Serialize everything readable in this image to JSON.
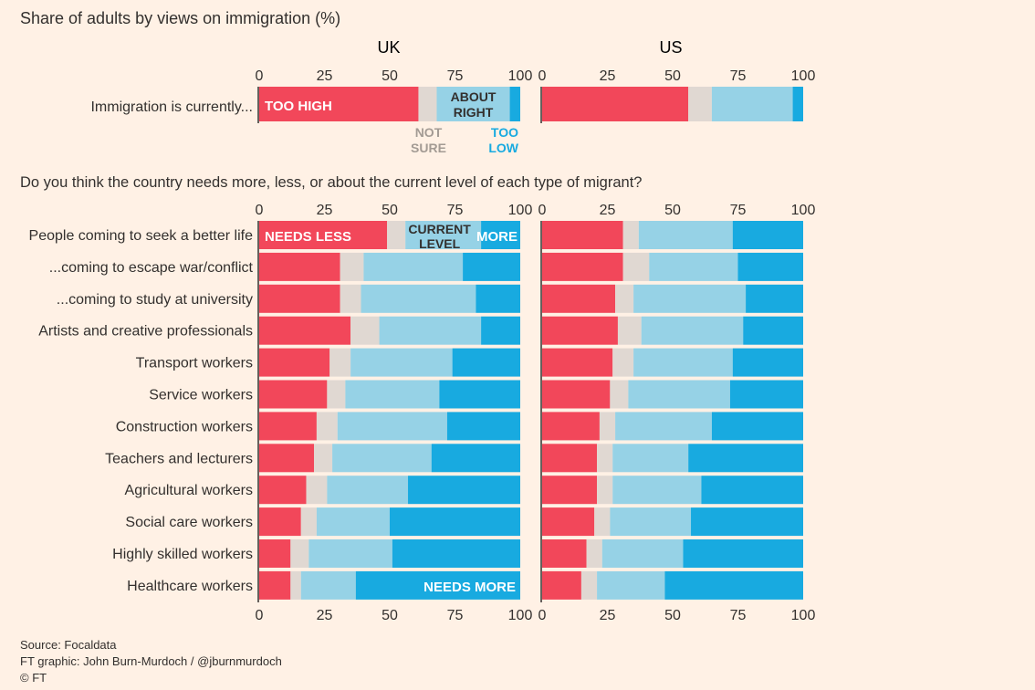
{
  "title": "Share of adults by views on immigration (%)",
  "panels": [
    "UK",
    "US"
  ],
  "ticks": [
    0,
    25,
    50,
    75,
    100
  ],
  "colors": {
    "less": "#f2475a",
    "not_sure": "#e0d8d2",
    "current": "#96d2e6",
    "more": "#18aae0",
    "text": "#33302e",
    "muted": "#a39b94",
    "axis": "#33302e",
    "background": "#fff1e5"
  },
  "chart_data": [
    {
      "type": "bar",
      "stacked": true,
      "orientation": "horizontal",
      "xlim": [
        0,
        100
      ],
      "categories": [
        "Immigration is currently..."
      ],
      "segment_labels": {
        "too_high": "TOO HIGH",
        "not_sure": [
          "NOT",
          "SURE"
        ],
        "about_right": [
          "ABOUT",
          "RIGHT"
        ],
        "too_low": [
          "TOO",
          "LOW"
        ]
      },
      "series": [
        {
          "name": "TOO HIGH",
          "key": "less",
          "uk": [
            61
          ],
          "us": [
            56
          ]
        },
        {
          "name": "NOT SURE",
          "key": "not_sure",
          "uk": [
            7
          ],
          "us": [
            9
          ]
        },
        {
          "name": "ABOUT RIGHT",
          "key": "current",
          "uk": [
            28
          ],
          "us": [
            31
          ]
        },
        {
          "name": "TOO LOW",
          "key": "more",
          "uk": [
            4
          ],
          "us": [
            4
          ]
        }
      ]
    },
    {
      "type": "bar",
      "stacked": true,
      "orientation": "horizontal",
      "xlim": [
        0,
        100
      ],
      "title": "Do you think the country needs more, less, or about the current level of each type of migrant?",
      "segment_labels": {
        "less": "NEEDS LESS",
        "current": [
          "CURRENT",
          "LEVEL"
        ],
        "more": "MORE",
        "more_bottom": "NEEDS MORE"
      },
      "categories": [
        "People coming to seek a better life",
        "...coming to escape war/conflict",
        "...coming to study at university",
        "Artists and creative professionals",
        "Transport workers",
        "Service workers",
        "Construction workers",
        "Teachers and lecturers",
        "Agricultural workers",
        "Social care workers",
        "Highly skilled workers",
        "Healthcare workers"
      ],
      "uk": {
        "less": [
          49,
          31,
          31,
          35,
          27,
          26,
          22,
          21,
          18,
          16,
          12,
          12
        ],
        "not_sure": [
          7,
          9,
          8,
          11,
          8,
          7,
          8,
          7,
          8,
          6,
          7,
          4
        ],
        "current": [
          29,
          38,
          44,
          39,
          39,
          36,
          42,
          38,
          31,
          28,
          32,
          21
        ],
        "more": [
          15,
          22,
          17,
          15,
          26,
          31,
          28,
          34,
          43,
          50,
          49,
          63
        ]
      },
      "us": {
        "less": [
          31,
          31,
          28,
          29,
          27,
          26,
          22,
          21,
          21,
          20,
          17,
          15
        ],
        "not_sure": [
          6,
          10,
          7,
          9,
          8,
          7,
          6,
          6,
          6,
          6,
          6,
          6
        ],
        "current": [
          36,
          34,
          43,
          39,
          38,
          39,
          37,
          29,
          34,
          31,
          31,
          26
        ],
        "more": [
          27,
          25,
          22,
          23,
          27,
          28,
          35,
          44,
          39,
          43,
          46,
          53
        ]
      }
    }
  ],
  "footer": {
    "source": "Source: Focaldata",
    "credit": "FT graphic: John Burn-Murdoch / @jburnmurdoch",
    "copyright": "© FT"
  }
}
